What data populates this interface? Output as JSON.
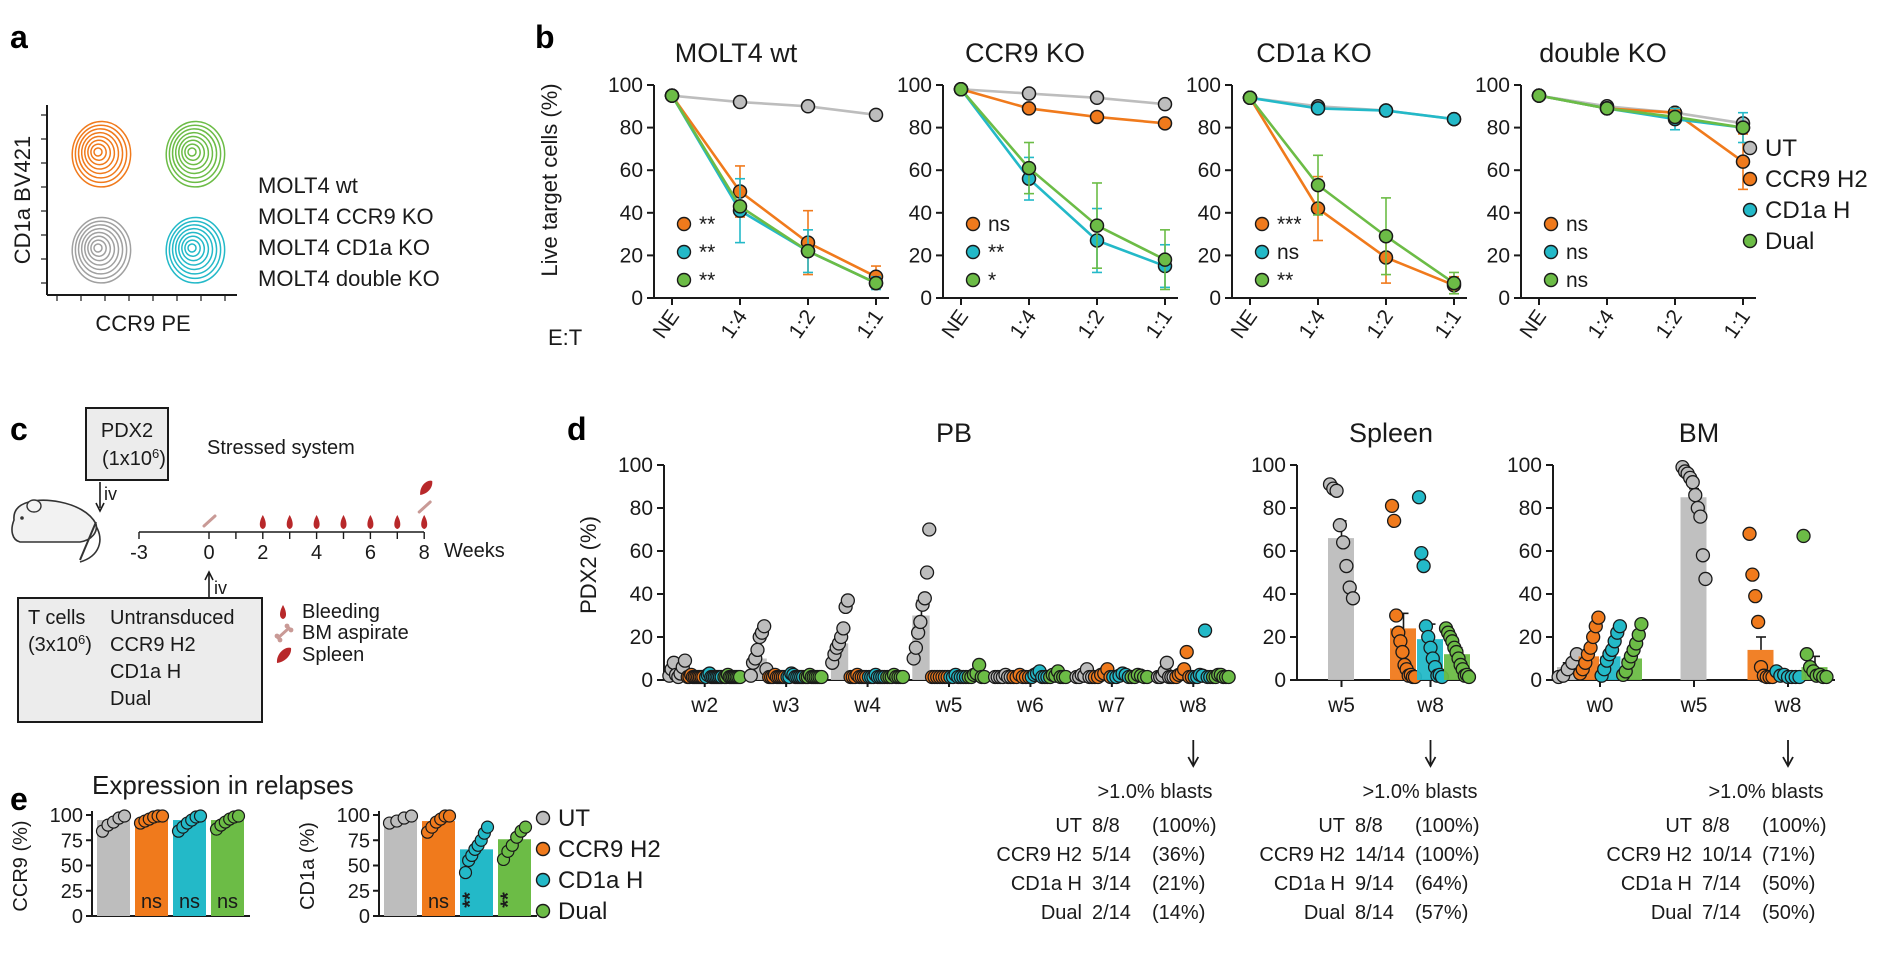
{
  "colors": {
    "UT": "#bdbdbd",
    "CCR9 H2": "#f07a1c",
    "CD1a H": "#23b9c8",
    "Dual": "#6cbc46",
    "wt": "#6cbc46",
    "ccr9ko": "#f07a1c",
    "cd1ako": "#23b9c8",
    "dko": "#a0a0a0",
    "blood": "#b8282a",
    "bone": "#c99a96",
    "ink": "#1a1a1a"
  },
  "panel_letters": {
    "a": "a",
    "b": "b",
    "c": "c",
    "d": "d",
    "e": "e"
  },
  "panel_a": {
    "ylabel": "CD1a BV421",
    "xlabel": "CCR9 PE",
    "legend": [
      "MOLT4 wt",
      "MOLT4 CCR9 KO",
      "MOLT4 CD1a KO",
      "MOLT4 double KO"
    ]
  },
  "panel_b": {
    "ylabel": "Live target cells (%)",
    "et_label": "E:T",
    "yticks": [
      "0",
      "20",
      "40",
      "60",
      "80",
      "100"
    ],
    "legend": [
      "UT",
      "CCR9 H2",
      "CD1a H",
      "Dual"
    ]
  },
  "panel_c": {
    "pdx_line1": "PDX2",
    "pdx_line2": "(1x10",
    "pdx_sup": "6",
    "pdx_close": ")",
    "iv_top": "iv",
    "iv_bottom": "iv",
    "stressed": "Stressed system",
    "weeks_label": "Weeks",
    "timeline_ticks": [
      "-3",
      "0",
      "2",
      "4",
      "6",
      "8"
    ],
    "tcells_title": "T cells",
    "tcells_dose": "(3x10",
    "tcells_sup": "6",
    "tcells_close": ")",
    "tcells_groups": [
      "Untransduced",
      "CCR9 H2",
      "CD1a H",
      "Dual"
    ],
    "legend": [
      "Bleeding",
      "BM aspirate",
      "Spleen"
    ]
  },
  "panel_d": {
    "ylabel": "PDX2 (%)",
    "yticks": [
      "0",
      "20",
      "40",
      "60",
      "80",
      "100"
    ],
    "blasts_header": ">1.0% blasts",
    "tables": {
      "PB": [
        [
          "UT",
          "8/8",
          "(100%)"
        ],
        [
          "CCR9 H2",
          "5/14",
          "(36%)"
        ],
        [
          "CD1a H",
          "3/14",
          "(21%)"
        ],
        [
          "Dual",
          "2/14",
          "(14%)"
        ]
      ],
      "Spleen": [
        [
          "UT",
          "8/8",
          "(100%)"
        ],
        [
          "CCR9 H2",
          "14/14",
          "(100%)"
        ],
        [
          "CD1a H",
          "9/14",
          "(64%)"
        ],
        [
          "Dual",
          "8/14",
          "(57%)"
        ]
      ],
      "BM": [
        [
          "UT",
          "8/8",
          "(100%)"
        ],
        [
          "CCR9 H2",
          "10/14",
          "(71%)"
        ],
        [
          "CD1a H",
          "7/14",
          "(50%)"
        ],
        [
          "Dual",
          "7/14",
          "(50%)"
        ]
      ]
    }
  },
  "panel_e": {
    "title": "Expression in relapses",
    "yticks": [
      "0",
      "25",
      "50",
      "75",
      "100"
    ],
    "legend": [
      "UT",
      "CCR9 H2",
      "CD1a H",
      "Dual"
    ]
  },
  "chart_data": [
    {
      "type": "line",
      "panel": "b",
      "title": "MOLT4 wt",
      "x": [
        "NE",
        "1:4",
        "1:2",
        "1:1"
      ],
      "ylim": [
        0,
        100
      ],
      "series": [
        {
          "name": "UT",
          "values": [
            95,
            92,
            90,
            86
          ],
          "err": [
            0,
            0,
            0,
            0
          ]
        },
        {
          "name": "CCR9 H2",
          "values": [
            95,
            50,
            26,
            10
          ],
          "err": [
            0,
            12,
            15,
            5
          ]
        },
        {
          "name": "CD1a H",
          "values": [
            95,
            41,
            22,
            7
          ],
          "err": [
            0,
            15,
            10,
            3
          ]
        },
        {
          "name": "Dual",
          "values": [
            95,
            43,
            22,
            7
          ],
          "err": [
            0,
            0,
            0,
            0
          ]
        }
      ],
      "annotations": [
        [
          "CCR9 H2",
          "**"
        ],
        [
          "CD1a H",
          "**"
        ],
        [
          "Dual",
          "**"
        ]
      ]
    },
    {
      "type": "line",
      "panel": "b",
      "title": "CCR9 KO",
      "x": [
        "NE",
        "1:4",
        "1:2",
        "1:1"
      ],
      "ylim": [
        0,
        100
      ],
      "series": [
        {
          "name": "UT",
          "values": [
            98,
            96,
            94,
            91
          ],
          "err": [
            0,
            0,
            0,
            0
          ]
        },
        {
          "name": "CCR9 H2",
          "values": [
            98,
            89,
            85,
            82
          ],
          "err": [
            0,
            0,
            0,
            0
          ]
        },
        {
          "name": "CD1a H",
          "values": [
            98,
            56,
            27,
            15
          ],
          "err": [
            0,
            10,
            15,
            10
          ]
        },
        {
          "name": "Dual",
          "values": [
            98,
            61,
            34,
            18
          ],
          "err": [
            0,
            12,
            20,
            14
          ]
        }
      ],
      "annotations": [
        [
          "CCR9 H2",
          "ns"
        ],
        [
          "CD1a H",
          "**"
        ],
        [
          "Dual",
          "*"
        ]
      ]
    },
    {
      "type": "line",
      "panel": "b",
      "title": "CD1a KO",
      "x": [
        "NE",
        "1:4",
        "1:2",
        "1:1"
      ],
      "ylim": [
        0,
        100
      ],
      "series": [
        {
          "name": "UT",
          "values": [
            94,
            90,
            88,
            84
          ],
          "err": [
            0,
            0,
            0,
            0
          ]
        },
        {
          "name": "CCR9 H2",
          "values": [
            94,
            42,
            19,
            6
          ],
          "err": [
            0,
            15,
            12,
            4
          ]
        },
        {
          "name": "CD1a H",
          "values": [
            94,
            89,
            88,
            84
          ],
          "err": [
            0,
            0,
            0,
            0
          ]
        },
        {
          "name": "Dual",
          "values": [
            94,
            53,
            29,
            7
          ],
          "err": [
            0,
            14,
            18,
            5
          ]
        }
      ],
      "annotations": [
        [
          "CCR9 H2",
          "***"
        ],
        [
          "CD1a H",
          "ns"
        ],
        [
          "Dual",
          "**"
        ]
      ]
    },
    {
      "type": "line",
      "panel": "b",
      "title": "double KO",
      "x": [
        "NE",
        "1:4",
        "1:2",
        "1:1"
      ],
      "ylim": [
        0,
        100
      ],
      "series": [
        {
          "name": "UT",
          "values": [
            95,
            90,
            87,
            82
          ],
          "err": [
            0,
            0,
            0,
            0
          ]
        },
        {
          "name": "CCR9 H2",
          "values": [
            95,
            89,
            87,
            64
          ],
          "err": [
            0,
            0,
            0,
            13
          ]
        },
        {
          "name": "CD1a H",
          "values": [
            95,
            89,
            84,
            80
          ],
          "err": [
            0,
            0,
            5,
            7
          ]
        },
        {
          "name": "Dual",
          "values": [
            95,
            89,
            85,
            80
          ],
          "err": [
            0,
            0,
            0,
            0
          ]
        }
      ],
      "annotations": [
        [
          "CCR9 H2",
          "ns"
        ],
        [
          "CD1a H",
          "ns"
        ],
        [
          "Dual",
          "ns"
        ]
      ]
    },
    {
      "type": "bar",
      "panel": "d",
      "title": "PB",
      "categories": [
        "w2",
        "w3",
        "w4",
        "w5",
        "w6",
        "w7",
        "w8"
      ],
      "ylim": [
        0,
        100
      ],
      "series": [
        {
          "name": "UT",
          "values": [
            4,
            10,
            17,
            30,
            0,
            0,
            0
          ],
          "sem": [
            1,
            3,
            4,
            7,
            0,
            0,
            0
          ]
        },
        {
          "name": "CCR9 H2",
          "values": [
            0,
            0,
            0,
            0,
            0,
            1,
            3
          ],
          "sem": [
            0,
            0,
            0,
            0,
            0,
            1,
            1
          ]
        },
        {
          "name": "CD1a H",
          "values": [
            0,
            1,
            0,
            0,
            1,
            1,
            2
          ],
          "sem": [
            0,
            0,
            0,
            0,
            0,
            0,
            2
          ]
        },
        {
          "name": "Dual",
          "values": [
            0,
            0,
            0,
            1,
            1,
            1,
            0
          ],
          "sem": [
            0,
            0,
            0,
            1,
            0,
            0,
            0
          ]
        }
      ],
      "points": [
        [
          [
            2,
            5,
            8,
            1,
            0,
            3,
            6,
            9
          ],
          [
            0,
            0,
            1,
            0,
            0,
            0,
            0,
            0,
            0,
            0
          ],
          [
            0,
            1,
            3,
            0,
            0,
            0,
            0,
            0,
            0,
            0
          ],
          [
            0,
            0,
            1,
            0,
            0,
            0,
            0,
            0,
            0,
            0
          ]
        ],
        [
          [
            2,
            8,
            10,
            14,
            20,
            22,
            25,
            5
          ],
          [
            0,
            0,
            0,
            1,
            0,
            0,
            0,
            0,
            0
          ],
          [
            0,
            0,
            3,
            1,
            0,
            0,
            0,
            0,
            0
          ],
          [
            0,
            0,
            1,
            0,
            0,
            0,
            0,
            0,
            0
          ]
        ],
        [
          [
            8,
            12,
            15,
            17,
            20,
            24,
            34,
            37
          ],
          [
            0,
            0,
            0,
            1,
            0,
            0,
            0,
            0
          ],
          [
            0,
            0,
            0,
            1,
            0,
            0,
            0,
            0
          ],
          [
            0,
            0,
            0,
            1,
            0,
            0,
            0,
            0
          ]
        ],
        [
          [
            10,
            15,
            22,
            27,
            35,
            38,
            50,
            70
          ],
          [
            0,
            0,
            0,
            0,
            0,
            0,
            0
          ],
          [
            0,
            0,
            1,
            0,
            0,
            0,
            0
          ],
          [
            0,
            0,
            1,
            3,
            7,
            0,
            0
          ]
        ],
        [
          [
            0,
            0,
            0,
            0,
            1,
            0,
            0
          ],
          [
            0,
            0,
            1,
            0,
            0,
            0
          ],
          [
            0,
            1,
            3,
            4,
            0,
            0,
            0
          ],
          [
            0,
            1,
            2,
            4,
            0,
            0,
            0
          ]
        ],
        [
          [
            0,
            0,
            1,
            2,
            5,
            0,
            0
          ],
          [
            0,
            0,
            1,
            3,
            5,
            0
          ],
          [
            0,
            0,
            2,
            3,
            1,
            0
          ],
          [
            0,
            0,
            1,
            2,
            0,
            0
          ]
        ],
        [
          [
            0,
            0,
            2,
            4,
            8,
            0,
            0,
            0
          ],
          [
            0,
            1,
            3,
            5,
            13,
            0,
            0
          ],
          [
            0,
            0,
            1,
            2,
            23,
            0,
            0
          ],
          [
            0,
            0,
            1,
            1,
            0,
            0,
            0
          ]
        ]
      ]
    },
    {
      "type": "bar",
      "panel": "d",
      "title": "Spleen",
      "categories": [
        "w5",
        "w8"
      ],
      "ylim": [
        0,
        100
      ],
      "series": [
        {
          "name": "UT",
          "values": [
            66,
            null
          ],
          "sem": [
            8,
            null
          ]
        },
        {
          "name": "CCR9 H2",
          "values": [
            null,
            24
          ],
          "sem": [
            null,
            7
          ]
        },
        {
          "name": "CD1a H",
          "values": [
            null,
            19
          ],
          "sem": [
            null,
            7
          ]
        },
        {
          "name": "Dual",
          "values": [
            null,
            12
          ],
          "sem": [
            null,
            3
          ]
        }
      ],
      "points": [
        [
          [
            91,
            89,
            88,
            72,
            64,
            53,
            43,
            38
          ],
          [],
          [],
          []
        ],
        [
          [],
          [
            81,
            74,
            30,
            22,
            18,
            13,
            7,
            5,
            2,
            1,
            0,
            0
          ],
          [
            85,
            59,
            53,
            25,
            20,
            15,
            10,
            6,
            2,
            1,
            0
          ],
          [
            24,
            22,
            20,
            18,
            15,
            13,
            10,
            7,
            5,
            2,
            1,
            0
          ]
        ]
      ]
    },
    {
      "type": "bar",
      "panel": "d",
      "title": "BM",
      "categories": [
        "w0",
        "w5",
        "w8"
      ],
      "ylim": [
        0,
        100
      ],
      "series": [
        {
          "name": "UT",
          "values": [
            6,
            85,
            null
          ],
          "sem": [
            2,
            4,
            null
          ]
        },
        {
          "name": "CCR9 H2",
          "values": [
            11,
            null,
            14
          ],
          "sem": [
            2,
            null,
            6
          ]
        },
        {
          "name": "CD1a H",
          "values": [
            11,
            null,
            2
          ],
          "sem": [
            2,
            null,
            1
          ]
        },
        {
          "name": "Dual",
          "values": [
            10,
            null,
            6
          ],
          "sem": [
            2,
            null,
            5
          ]
        }
      ],
      "points": [
        [
          [
            0,
            2,
            5,
            8,
            12
          ],
          [
            3,
            5,
            8,
            12,
            15,
            20,
            25,
            29
          ],
          [
            2,
            5,
            9,
            12,
            14,
            18,
            22,
            25
          ],
          [
            1,
            4,
            8,
            11,
            14,
            17,
            21,
            26
          ]
        ],
        [
          [
            99,
            97,
            96,
            94,
            92,
            86,
            80,
            76,
            58,
            47
          ],
          [],
          [],
          []
        ],
        [
          [],
          [
            68,
            49,
            39,
            27,
            6,
            2,
            0,
            0,
            0
          ],
          [
            4,
            2,
            1,
            0,
            0,
            0,
            0
          ],
          [
            67,
            12,
            6,
            4,
            2,
            1,
            0,
            0
          ]
        ]
      ]
    },
    {
      "type": "bar",
      "panel": "e",
      "title": "",
      "ylabel": "CCR9 (%)",
      "categories": [
        "UT",
        "CCR9 H2",
        "CD1a H",
        "Dual"
      ],
      "ylim": [
        0,
        100
      ],
      "values": [
        95,
        96,
        95,
        95
      ],
      "points": [
        [
          84,
          90,
          93,
          97,
          99
        ],
        [
          92,
          94,
          96,
          98,
          99,
          99
        ],
        [
          84,
          88,
          92,
          95,
          98,
          99
        ],
        [
          86,
          90,
          93,
          96,
          98,
          99
        ]
      ],
      "annotations": [
        "",
        "ns",
        "ns",
        "ns"
      ]
    },
    {
      "type": "bar",
      "panel": "e",
      "title": "",
      "ylabel": "CD1a (%)",
      "categories": [
        "UT",
        "CCR9 H2",
        "CD1a H",
        "Dual"
      ],
      "ylim": [
        0,
        100
      ],
      "values": [
        95,
        94,
        66,
        76
      ],
      "points": [
        [
          92,
          94,
          97,
          99
        ],
        [
          83,
          88,
          93,
          96,
          99,
          99
        ],
        [
          43,
          55,
          60,
          66,
          70,
          75,
          82,
          88
        ],
        [
          56,
          64,
          70,
          78,
          84,
          88
        ]
      ],
      "annotations": [
        "",
        "ns",
        "**",
        "**"
      ]
    }
  ]
}
